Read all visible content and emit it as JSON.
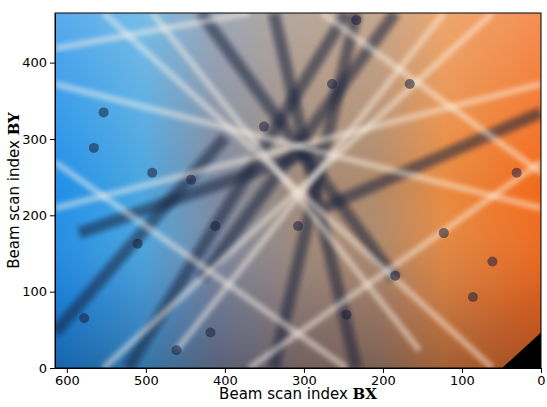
{
  "chart_data": {
    "type": "image",
    "x_label": "Beam scan index BX",
    "y_label": "Beam scan index BY",
    "xlim": [
      615,
      0
    ],
    "ylim": [
      0,
      465
    ],
    "xticks": [
      600,
      500,
      400,
      300,
      200,
      100,
      0
    ],
    "yticks": [
      0,
      100,
      200,
      300,
      400
    ],
    "grid": false
  }
}
